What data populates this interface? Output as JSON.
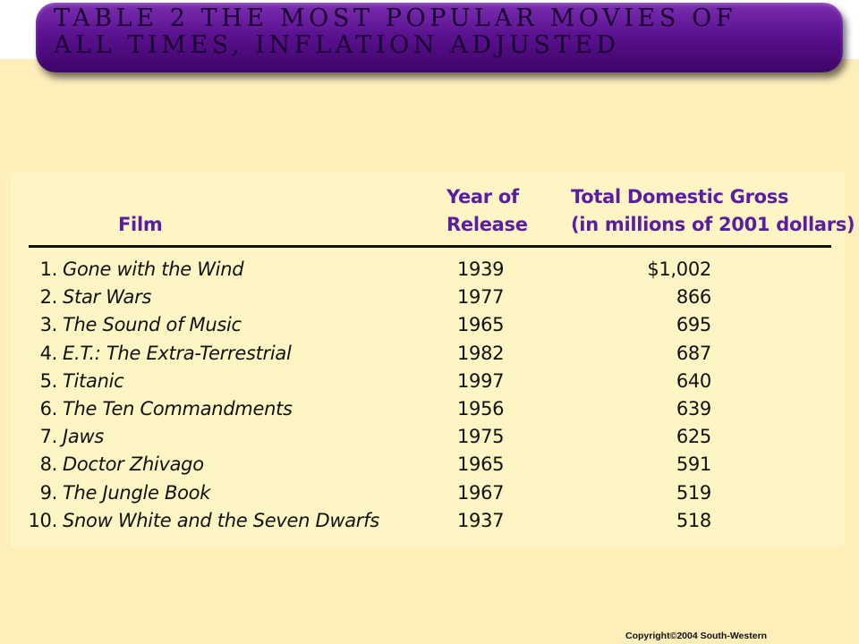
{
  "title": "TABLE 2 THE MOST POPULAR MOVIES OF\nALL TIMES, INFLATION ADJUSTED",
  "headers": {
    "film": "Film",
    "year_line1": "Year of",
    "year_line2": "Release",
    "gross_line1": "Total Domestic Gross",
    "gross_line2": "(in millions of 2001 dollars)"
  },
  "rows": [
    {
      "rank": "1.",
      "film": "Gone with the Wind",
      "year": "1939",
      "gross": "$1,002"
    },
    {
      "rank": "2.",
      "film": "Star Wars",
      "year": "1977",
      "gross": "866"
    },
    {
      "rank": "3.",
      "film": "The Sound of Music",
      "year": "1965",
      "gross": "695"
    },
    {
      "rank": "4.",
      "film": "E.T.: The Extra-Terrestrial",
      "year": "1982",
      "gross": "687"
    },
    {
      "rank": "5.",
      "film": "Titanic",
      "year": "1997",
      "gross": "640"
    },
    {
      "rank": "6.",
      "film": "The Ten Commandments",
      "year": "1956",
      "gross": "639"
    },
    {
      "rank": "7.",
      "film": "Jaws",
      "year": "1975",
      "gross": "625"
    },
    {
      "rank": "8.",
      "film": "Doctor Zhivago",
      "year": "1965",
      "gross": "591"
    },
    {
      "rank": "9.",
      "film": "The Jungle Book",
      "year": "1967",
      "gross": "519"
    },
    {
      "rank": "10.",
      "film": "Snow White and the Seven Dwarfs",
      "year": "1937",
      "gross": "518"
    }
  ],
  "copyright": "Copyright©2004  South-Western",
  "colors": {
    "banner": "#5b1290",
    "header_text": "#5a1ea0",
    "page_background": "#fdeeba",
    "table_background": "#fdf5c4"
  }
}
